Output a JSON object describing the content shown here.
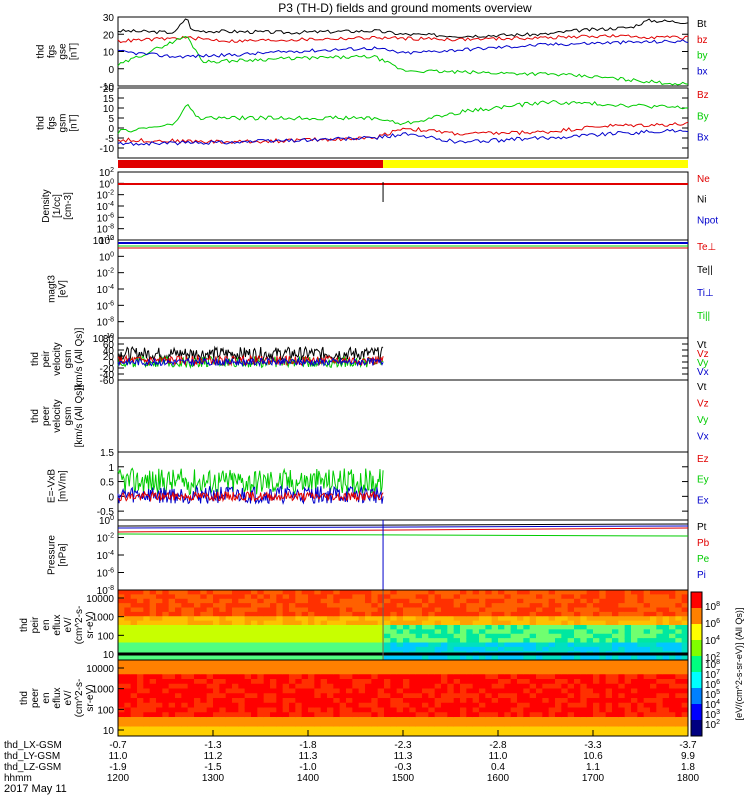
{
  "title": "P3 (TH-D) fields and ground moments overview",
  "date": "2017 May 11",
  "colors": {
    "black": "#000000",
    "red": "#e00000",
    "green": "#00cc00",
    "blue": "#0000cc",
    "yellow": "#ffff00"
  },
  "chart_data": [
    {
      "type": "line",
      "ylabel": [
        "thd",
        "fgs",
        "gse",
        "[nT]"
      ],
      "ylim": [
        -10,
        30
      ],
      "yticks": [
        -10,
        0,
        10,
        20,
        30
      ],
      "legend": [
        [
          "Bt",
          "black"
        ],
        [
          "bz",
          "red"
        ],
        [
          "by",
          "green"
        ],
        [
          "bx",
          "blue"
        ]
      ],
      "series": [
        {
          "name": "Bt",
          "color": "black",
          "points": [
            [
              0,
              22
            ],
            [
              0.1,
              21
            ],
            [
              0.12,
              30
            ],
            [
              0.13,
              22
            ],
            [
              0.3,
              21
            ],
            [
              0.45,
              22
            ],
            [
              0.5,
              20
            ],
            [
              0.6,
              19
            ],
            [
              0.75,
              20
            ],
            [
              0.8,
              22
            ],
            [
              0.9,
              24
            ],
            [
              0.93,
              28
            ],
            [
              1,
              27
            ]
          ]
        },
        {
          "name": "bz",
          "color": "red",
          "points": [
            [
              0,
              16
            ],
            [
              0.12,
              18
            ],
            [
              0.2,
              16
            ],
            [
              0.45,
              18
            ],
            [
              0.6,
              17
            ],
            [
              0.75,
              18
            ],
            [
              0.85,
              19
            ],
            [
              1,
              18
            ]
          ]
        },
        {
          "name": "by",
          "color": "green",
          "points": [
            [
              0,
              2
            ],
            [
              0.12,
              19
            ],
            [
              0.15,
              4
            ],
            [
              0.3,
              6
            ],
            [
              0.45,
              7
            ],
            [
              0.5,
              -1
            ],
            [
              0.6,
              -2
            ],
            [
              0.75,
              -3
            ],
            [
              0.85,
              -5
            ],
            [
              0.95,
              -8
            ],
            [
              1,
              -9
            ]
          ]
        },
        {
          "name": "bx",
          "color": "blue",
          "points": [
            [
              0,
              10
            ],
            [
              0.1,
              7
            ],
            [
              0.2,
              8
            ],
            [
              0.3,
              10
            ],
            [
              0.45,
              12
            ],
            [
              0.5,
              9
            ],
            [
              0.6,
              11
            ],
            [
              0.75,
              14
            ],
            [
              0.85,
              15
            ],
            [
              1,
              16
            ]
          ]
        }
      ]
    },
    {
      "type": "line",
      "ylabel": [
        "thd",
        "fgs",
        "gsm",
        "[nT]"
      ],
      "ylim": [
        -15,
        20
      ],
      "yticks": [
        -10,
        -5,
        0,
        5,
        10,
        15,
        20
      ],
      "legend": [
        [
          "Bz",
          "red"
        ],
        [
          "By",
          "green"
        ],
        [
          "Bx",
          "blue"
        ]
      ],
      "series": [
        {
          "name": "Bz",
          "color": "red",
          "points": [
            [
              0,
              -6
            ],
            [
              0.2,
              -7
            ],
            [
              0.45,
              -5
            ],
            [
              0.5,
              0
            ],
            [
              0.6,
              -3
            ],
            [
              0.75,
              -2
            ],
            [
              0.85,
              1
            ],
            [
              1,
              2
            ]
          ]
        },
        {
          "name": "By",
          "color": "green",
          "points": [
            [
              0,
              -2
            ],
            [
              0.1,
              2
            ],
            [
              0.12,
              12
            ],
            [
              0.14,
              5
            ],
            [
              0.3,
              5
            ],
            [
              0.45,
              5
            ],
            [
              0.5,
              2
            ],
            [
              0.6,
              8
            ],
            [
              0.75,
              13
            ],
            [
              0.85,
              12
            ],
            [
              1,
              10
            ]
          ]
        },
        {
          "name": "Bx",
          "color": "blue",
          "points": [
            [
              0,
              -8
            ],
            [
              0.2,
              -7
            ],
            [
              0.45,
              -5
            ],
            [
              0.5,
              -3
            ],
            [
              0.6,
              -7
            ],
            [
              0.75,
              -5
            ],
            [
              0.85,
              -3
            ],
            [
              1,
              -1
            ]
          ]
        }
      ]
    },
    {
      "type": "bar",
      "mode_bar": [
        [
          0,
          0.465,
          "red"
        ],
        [
          0.465,
          1,
          "yellow"
        ]
      ]
    },
    {
      "type": "line",
      "ylabel": [
        "Density",
        "[1/cc]",
        "[cm-3]"
      ],
      "yscale": "log",
      "ylim_exp": [
        -10,
        2
      ],
      "yticks_exp": [
        -10,
        -8,
        -6,
        -4,
        -2,
        0,
        2
      ],
      "legend": [
        [
          "Ne",
          "red"
        ],
        [
          "Ni",
          "black"
        ],
        [
          "Npot",
          "blue"
        ]
      ]
    },
    {
      "type": "line",
      "ylabel": [
        "magt3",
        "[eV]"
      ],
      "yscale": "log",
      "ylim_exp": [
        -10,
        2
      ],
      "yticks_exp": [
        -10,
        -8,
        -6,
        -4,
        -2,
        0,
        2
      ],
      "legend": [
        [
          "Te⊥",
          "red"
        ],
        [
          "Te||",
          "black"
        ],
        [
          "Ti⊥",
          "blue"
        ],
        [
          "Ti||",
          "green"
        ]
      ]
    },
    {
      "type": "line",
      "ylabel": [
        "thd",
        "peir",
        "velocity",
        "gsm",
        "[km/s (All Qs)]"
      ],
      "ylim": [
        -60,
        80
      ],
      "yticks": [
        -60,
        -40,
        -20,
        0,
        20,
        40,
        60,
        80
      ],
      "legend": [
        [
          "Vt",
          "black"
        ],
        [
          "Vz",
          "red"
        ],
        [
          "Vy",
          "green"
        ],
        [
          "Vx",
          "blue"
        ]
      ],
      "data_end": 0.465
    },
    {
      "type": "line",
      "ylabel": [
        "thd",
        "peer",
        "velocity",
        "gsm",
        "[km/s (All Qs)]"
      ],
      "legend": [
        [
          "Vt",
          "black"
        ],
        [
          "Vz",
          "red"
        ],
        [
          "Vy",
          "green"
        ],
        [
          "Vx",
          "blue"
        ]
      ]
    },
    {
      "type": "line",
      "ylabel": [
        "E=-VxB",
        "[mV/m]"
      ],
      "ylim": [
        -0.8,
        1.5
      ],
      "yticks": [
        -0.5,
        0,
        0.5,
        1.0,
        1.5
      ],
      "legend": [
        [
          "Ez",
          "red"
        ],
        [
          "Ey",
          "green"
        ],
        [
          "Ex",
          "blue"
        ]
      ],
      "data_end": 0.465
    },
    {
      "type": "line",
      "ylabel": [
        "Pressure",
        "[nPa]"
      ],
      "yscale": "log",
      "ylim_exp": [
        -8,
        0
      ],
      "yticks_exp": [
        -8,
        -6,
        -4,
        -2,
        0
      ],
      "legend": [
        [
          "Pt",
          "black"
        ],
        [
          "Pb",
          "red"
        ],
        [
          "Pe",
          "green"
        ],
        [
          "Pi",
          "blue"
        ]
      ]
    },
    {
      "type": "heatmap",
      "ylabel": [
        "thd",
        "peir",
        "en",
        "eflux",
        "eV/",
        "(cm^2-s-",
        "sr-eV)"
      ],
      "yticks": [
        "10000",
        "1000",
        "100",
        "10"
      ]
    },
    {
      "type": "heatmap",
      "ylabel": [
        "thd",
        "peer",
        "en",
        "eflux",
        "eV/",
        "(cm^2-s-",
        "sr-eV)"
      ],
      "yticks": [
        "10000",
        "1000",
        "100",
        "10"
      ]
    }
  ],
  "colorbar": {
    "upper_ticks": [
      "10^8",
      "10^6",
      "10^4",
      "10^2"
    ],
    "lower_ticks": [
      "10^8",
      "10^7",
      "10^6",
      "10^5",
      "10^4",
      "10^3",
      "10^2"
    ],
    "label": "[eV/(cm^2-s-sr-eV)] (All Qs)]"
  },
  "axis": {
    "row_labels": [
      "thd_LX-GSM",
      "thd_LY-GSM",
      "thd_LZ-GSM",
      "hhmm"
    ],
    "rows": [
      [
        "-0.7",
        "-1.3",
        "-1.8",
        "-2.3",
        "-2.8",
        "-3.3",
        "-3.7"
      ],
      [
        "11.0",
        "11.2",
        "11.3",
        "11.3",
        "11.0",
        "10.6",
        "9.9"
      ],
      [
        "-1.9",
        "-1.5",
        "-1.0",
        "-0.3",
        "0.4",
        "1.1",
        "1.8"
      ],
      [
        "1200",
        "1300",
        "1400",
        "1500",
        "1600",
        "1700",
        "1800"
      ]
    ]
  }
}
